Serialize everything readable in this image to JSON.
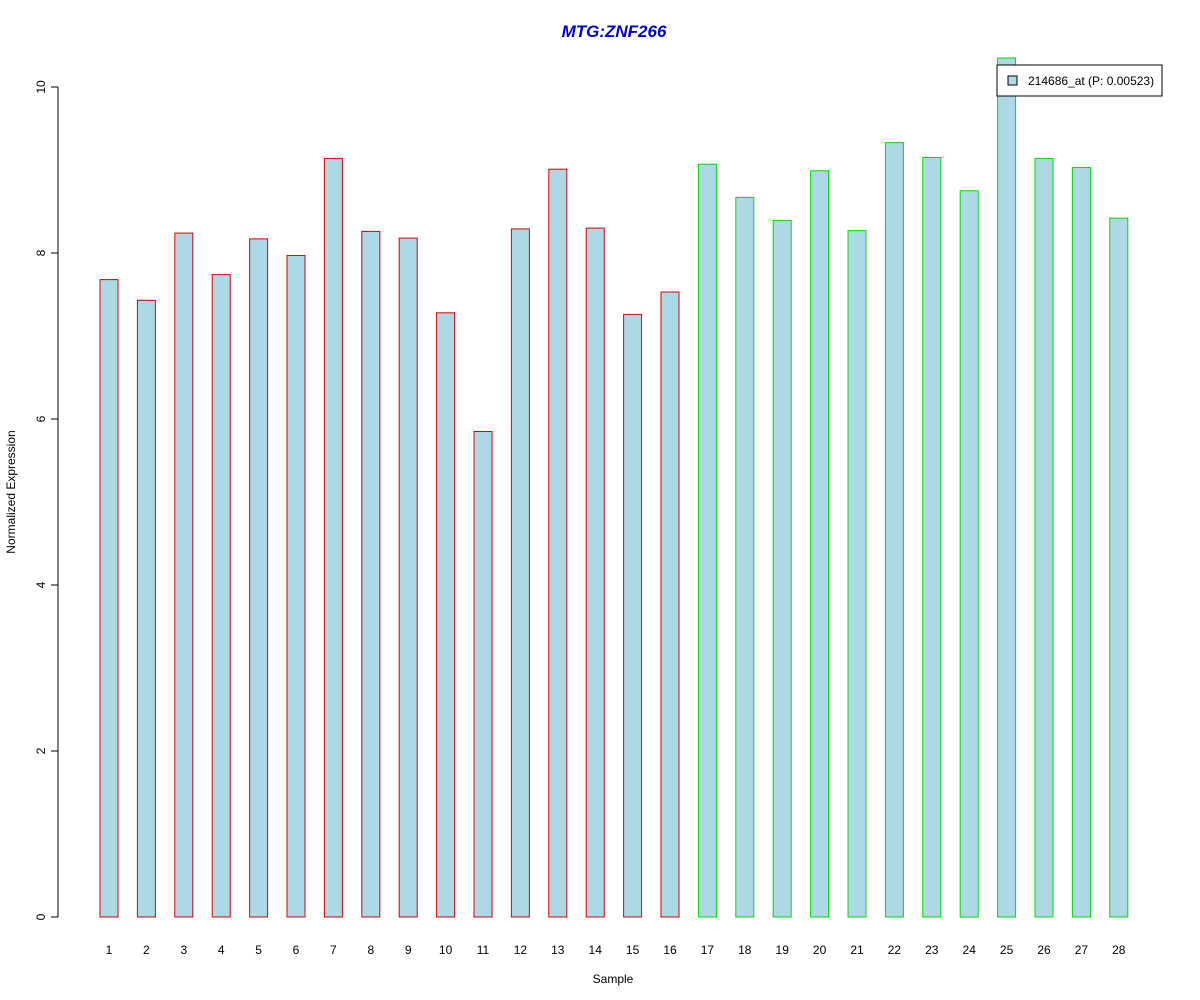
{
  "chart_data": {
    "type": "bar",
    "title": "MTG:ZNF266",
    "xlabel": "Sample",
    "ylabel": "Normalized Expression",
    "ylim": [
      0,
      10.35
    ],
    "yticks": [
      0,
      2,
      4,
      6,
      8,
      10
    ],
    "categories": [
      "1",
      "2",
      "3",
      "4",
      "5",
      "6",
      "7",
      "8",
      "9",
      "10",
      "11",
      "12",
      "13",
      "14",
      "15",
      "16",
      "17",
      "18",
      "19",
      "20",
      "21",
      "22",
      "23",
      "24",
      "25",
      "26",
      "27",
      "28"
    ],
    "series": [
      {
        "name": "214686_at (P: 0.00523)",
        "values": [
          7.68,
          7.43,
          8.24,
          7.74,
          8.17,
          7.97,
          9.14,
          8.26,
          8.18,
          7.28,
          5.85,
          8.29,
          9.01,
          8.3,
          7.26,
          7.53,
          9.07,
          8.67,
          8.39,
          8.99,
          8.27,
          9.33,
          9.15,
          8.75,
          10.35,
          9.14,
          9.03,
          8.42
        ]
      }
    ],
    "group_border_colors": [
      "#dd0000",
      "#dd0000",
      "#dd0000",
      "#dd0000",
      "#dd0000",
      "#dd0000",
      "#dd0000",
      "#dd0000",
      "#dd0000",
      "#dd0000",
      "#dd0000",
      "#dd0000",
      "#dd0000",
      "#dd0000",
      "#dd0000",
      "#dd0000",
      "#00dd00",
      "#00dd00",
      "#00dd00",
      "#00dd00",
      "#00dd00",
      "#00dd00",
      "#00dd00",
      "#00dd00",
      "#00dd00",
      "#00dd00",
      "#00dd00",
      "#00dd00"
    ],
    "bar_fill": "#add8e6",
    "title_color": "#0000cc",
    "grid": false,
    "legend": {
      "placement": "top-right",
      "label": "214686_at (P: 0.00523)"
    }
  }
}
